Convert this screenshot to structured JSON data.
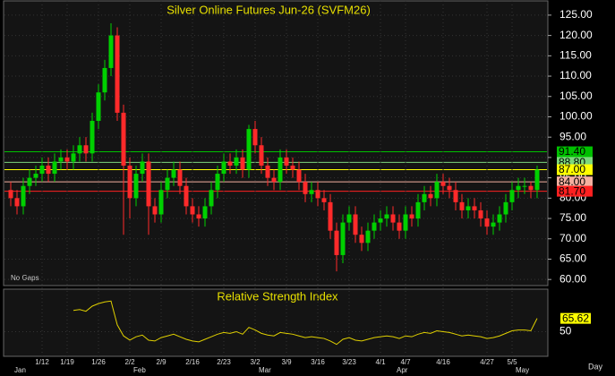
{
  "chart_data": [
    {
      "type": "candlestick",
      "title": "Silver Online Futures Jun-26 (SVFM26)",
      "note": "No Gaps",
      "period": "Day",
      "categories": [
        null,
        null,
        null,
        null,
        null,
        "1/12",
        null,
        null,
        null,
        "1/19",
        null,
        null,
        null,
        null,
        "1/26",
        null,
        null,
        null,
        null,
        "2/2",
        null,
        null,
        null,
        null,
        "2/9",
        null,
        null,
        null,
        null,
        "2/16",
        null,
        null,
        null,
        null,
        "2/23",
        null,
        null,
        null,
        null,
        "3/2",
        null,
        null,
        null,
        null,
        "3/9",
        null,
        null,
        null,
        null,
        "3/16",
        null,
        null,
        null,
        null,
        "3/23",
        null,
        null,
        null,
        null,
        "4/1",
        null,
        null,
        null,
        "4/7",
        null,
        null,
        null,
        null,
        null,
        "4/16",
        null,
        null,
        null,
        null,
        null,
        null,
        "4/27",
        null,
        null,
        null,
        "5/5",
        null,
        null,
        null,
        null
      ],
      "months": [
        "Jan",
        null,
        null,
        null,
        null,
        null,
        null,
        null,
        null,
        null,
        null,
        null,
        null,
        null,
        null,
        null,
        null,
        null,
        null,
        "Feb",
        null,
        null,
        null,
        null,
        null,
        null,
        null,
        null,
        null,
        null,
        null,
        null,
        null,
        null,
        null,
        null,
        null,
        null,
        null,
        "Mar",
        null,
        null,
        null,
        null,
        null,
        null,
        null,
        null,
        null,
        null,
        null,
        null,
        null,
        null,
        null,
        null,
        null,
        null,
        null,
        null,
        null,
        "Apr",
        null,
        null,
        null,
        null,
        null,
        null,
        null,
        null,
        null,
        null,
        null,
        null,
        null,
        null,
        null,
        null,
        null,
        null,
        "May",
        null,
        null,
        null,
        null
      ],
      "open": [
        82,
        80,
        78,
        83,
        85,
        86,
        88,
        86,
        89,
        90,
        89,
        91,
        93,
        91,
        99,
        106,
        112,
        120,
        101,
        88,
        80,
        86,
        89,
        78,
        76,
        82,
        85,
        87,
        83,
        78,
        76,
        75,
        78,
        82,
        86,
        89,
        88,
        90,
        87,
        97,
        93,
        88,
        85,
        84,
        90,
        88,
        87,
        84,
        81,
        82,
        80,
        79,
        72,
        66,
        74,
        76,
        71,
        69,
        72,
        74,
        75,
        76,
        74,
        72,
        76,
        75,
        79,
        81,
        80,
        84,
        83,
        82,
        79,
        77,
        78,
        77,
        75,
        73,
        74,
        76,
        79,
        82,
        83,
        83,
        82
      ],
      "high": [
        84,
        82,
        85,
        87,
        88,
        90,
        90,
        91,
        92,
        92,
        93,
        95,
        95,
        101,
        108,
        114,
        123,
        122,
        103,
        90,
        88,
        91,
        91,
        80,
        84,
        87,
        89,
        89,
        85,
        80,
        78,
        80,
        84,
        88,
        91,
        91,
        92,
        92,
        98,
        99,
        95,
        90,
        87,
        92,
        92,
        90,
        89,
        86,
        84,
        84,
        82,
        81,
        74,
        76,
        78,
        78,
        73,
        74,
        76,
        77,
        78,
        78,
        76,
        78,
        78,
        81,
        83,
        83,
        86,
        86,
        85,
        84,
        81,
        80,
        80,
        79,
        77,
        76,
        78,
        81,
        84,
        85,
        85,
        84,
        88
      ],
      "low": [
        78,
        76,
        76,
        81,
        83,
        84,
        84,
        84,
        87,
        87,
        87,
        89,
        89,
        89,
        97,
        104,
        110,
        99,
        71,
        75,
        78,
        84,
        71,
        74,
        74,
        80,
        83,
        81,
        76,
        74,
        73,
        73,
        76,
        80,
        84,
        86,
        86,
        85,
        85,
        91,
        86,
        83,
        82,
        82,
        86,
        85,
        82,
        79,
        79,
        78,
        77,
        70,
        62,
        64,
        72,
        69,
        67,
        67,
        70,
        72,
        73,
        72,
        70,
        70,
        73,
        73,
        77,
        78,
        78,
        81,
        80,
        77,
        75,
        75,
        75,
        73,
        71,
        71,
        72,
        74,
        77,
        80,
        81,
        80,
        80
      ],
      "close": [
        80,
        78,
        83,
        85,
        86,
        88,
        86,
        89,
        90,
        89,
        91,
        93,
        91,
        99,
        106,
        112,
        120,
        101,
        88,
        80,
        86,
        89,
        78,
        76,
        82,
        85,
        87,
        83,
        78,
        76,
        75,
        78,
        82,
        86,
        89,
        88,
        90,
        87,
        97,
        93,
        88,
        85,
        84,
        90,
        88,
        87,
        84,
        81,
        82,
        80,
        79,
        72,
        66,
        74,
        76,
        71,
        69,
        72,
        74,
        75,
        76,
        74,
        72,
        76,
        75,
        79,
        81,
        80,
        84,
        83,
        82,
        79,
        77,
        78,
        77,
        75,
        73,
        74,
        76,
        79,
        82,
        83,
        83,
        82,
        87
      ],
      "up_color": "#00d000",
      "down_color": "#ff2a2a",
      "ylim": [
        58.5,
        128.5
      ],
      "yticks": [
        {
          "value": 60,
          "label": "60.00"
        },
        {
          "value": 65,
          "label": "65.00"
        },
        {
          "value": 70,
          "label": "70.00"
        },
        {
          "value": 75,
          "label": "75.00"
        },
        {
          "value": 80,
          "label": "80.00"
        },
        {
          "value": 85,
          "label": "85.00"
        },
        {
          "value": 90,
          "label": "90.00"
        },
        {
          "value": 95,
          "label": "95.00"
        },
        {
          "value": 100,
          "label": "100.00"
        },
        {
          "value": 105,
          "label": "105.00"
        },
        {
          "value": 110,
          "label": "110.00"
        },
        {
          "value": 115,
          "label": "115.00"
        },
        {
          "value": 120,
          "label": "120.00"
        },
        {
          "value": 125,
          "label": "125.00"
        }
      ],
      "levels": [
        {
          "value": 91.4,
          "label": "91.40",
          "color": "#00c000"
        },
        {
          "value": 88.8,
          "label": "88.80",
          "color": "#7cd77c"
        },
        {
          "value": 87,
          "label": "87.00",
          "color": "#ffff00"
        },
        {
          "value": 84,
          "label": "84.00",
          "color": "#f4b0a0"
        },
        {
          "value": 81.7,
          "label": "81.70",
          "color": "#ff2020"
        }
      ]
    },
    {
      "type": "line",
      "title": "Relative Strength Index",
      "color": "#e0d000",
      "values": [
        null,
        null,
        null,
        null,
        null,
        null,
        null,
        null,
        null,
        null,
        75,
        76,
        74,
        80,
        83,
        85,
        86,
        58,
        45,
        40,
        44,
        46,
        40,
        39,
        43,
        45,
        47,
        44,
        41,
        39,
        38,
        41,
        44,
        47,
        49,
        48,
        50,
        47,
        55,
        52,
        48,
        46,
        45,
        49,
        48,
        47,
        45,
        43,
        44,
        43,
        42,
        39,
        35,
        41,
        43,
        40,
        39,
        41,
        43,
        44,
        45,
        44,
        42,
        45,
        44,
        47,
        49,
        48,
        51,
        50,
        49,
        47,
        45,
        46,
        45,
        44,
        42,
        43,
        45,
        48,
        51,
        52,
        52,
        51,
        65.62
      ],
      "ylim": [
        21,
        100
      ],
      "yticks": [
        50
      ]
    }
  ]
}
